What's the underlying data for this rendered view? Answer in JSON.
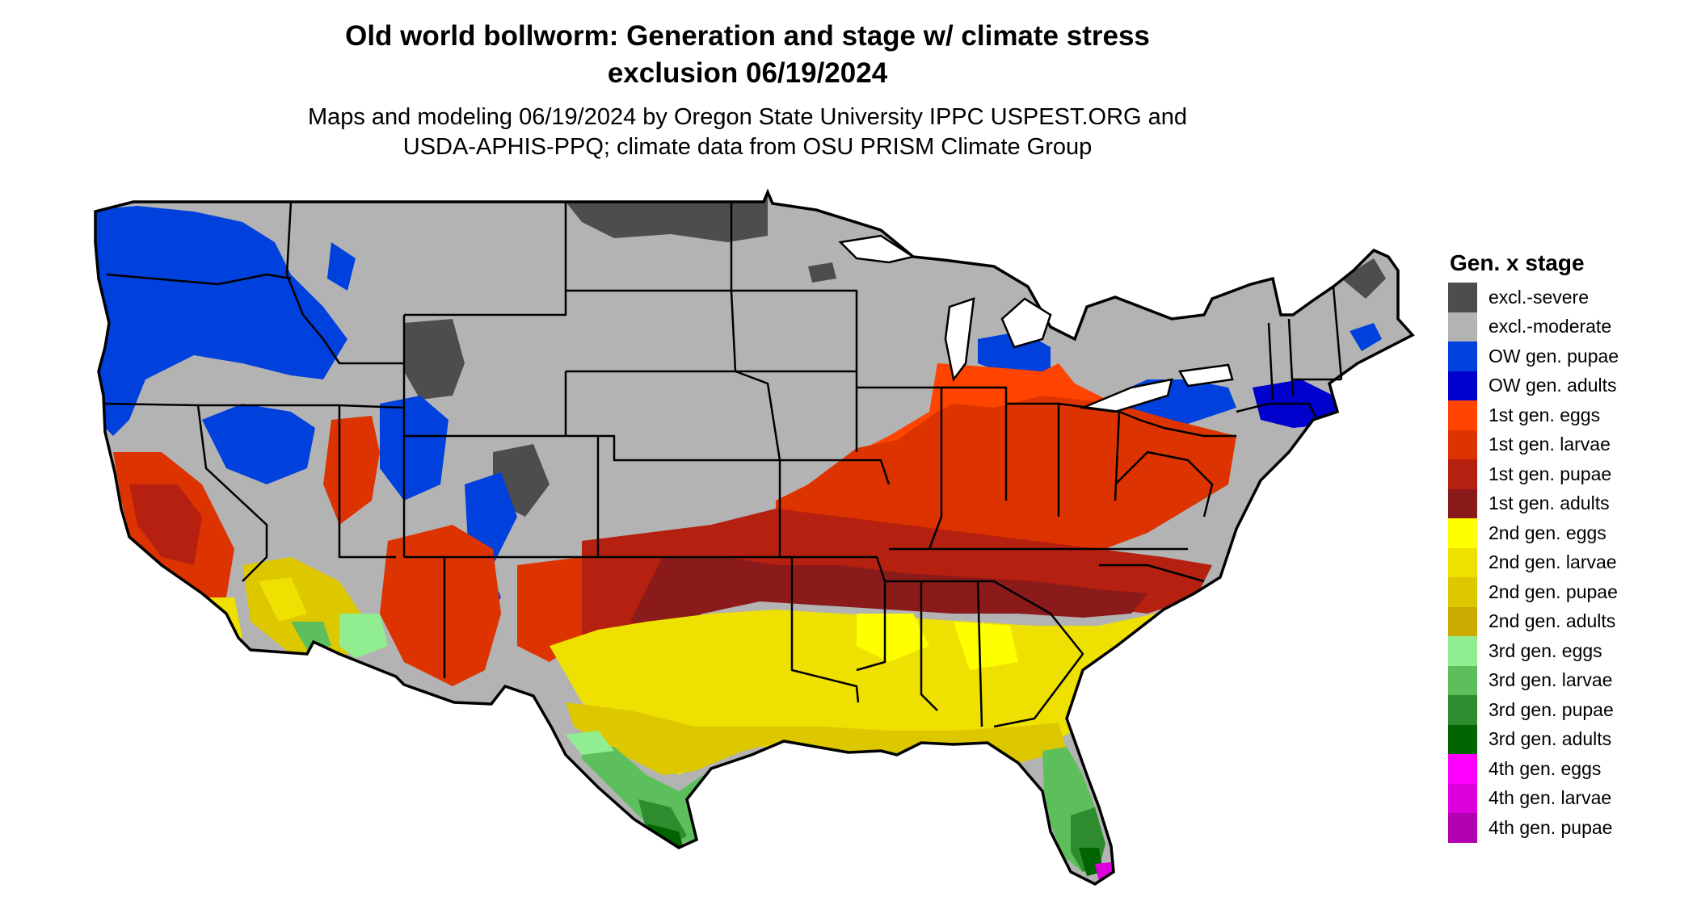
{
  "title_line1": "Old world bollworm: Generation and stage w/ climate stress",
  "title_line2": "exclusion 06/19/2024",
  "subtitle_line1": "Maps and modeling 06/19/2024 by Oregon State University IPPC USPEST.ORG and",
  "subtitle_line2": "USDA-APHIS-PPQ; climate data from OSU PRISM Climate Group",
  "legend": {
    "title": "Gen. x stage",
    "items": [
      {
        "label": "excl.-severe",
        "color": "#4d4d4d"
      },
      {
        "label": "excl.-moderate",
        "color": "#b3b3b3"
      },
      {
        "label": "OW gen. pupae",
        "color": "#0040dd"
      },
      {
        "label": "OW gen. adults",
        "color": "#0000cc"
      },
      {
        "label": "1st gen. eggs",
        "color": "#ff4400"
      },
      {
        "label": "1st gen. larvae",
        "color": "#dd3300"
      },
      {
        "label": "1st gen. pupae",
        "color": "#b52010"
      },
      {
        "label": "1st gen. adults",
        "color": "#8b1a1a"
      },
      {
        "label": "2nd gen. eggs",
        "color": "#ffff00"
      },
      {
        "label": "2nd gen. larvae",
        "color": "#eee000"
      },
      {
        "label": "2nd gen. pupae",
        "color": "#ddc800"
      },
      {
        "label": "2nd gen. adults",
        "color": "#ccaa00"
      },
      {
        "label": "3rd gen. eggs",
        "color": "#90ee90"
      },
      {
        "label": "3rd gen. larvae",
        "color": "#5cbf5c"
      },
      {
        "label": "3rd gen. pupae",
        "color": "#2e8b2e"
      },
      {
        "label": "3rd gen. adults",
        "color": "#006400"
      },
      {
        "label": "4th gen. eggs",
        "color": "#ff00ff"
      },
      {
        "label": "4th gen. larvae",
        "color": "#dd00dd"
      },
      {
        "label": "4th gen. pupae",
        "color": "#b000b0"
      }
    ]
  }
}
